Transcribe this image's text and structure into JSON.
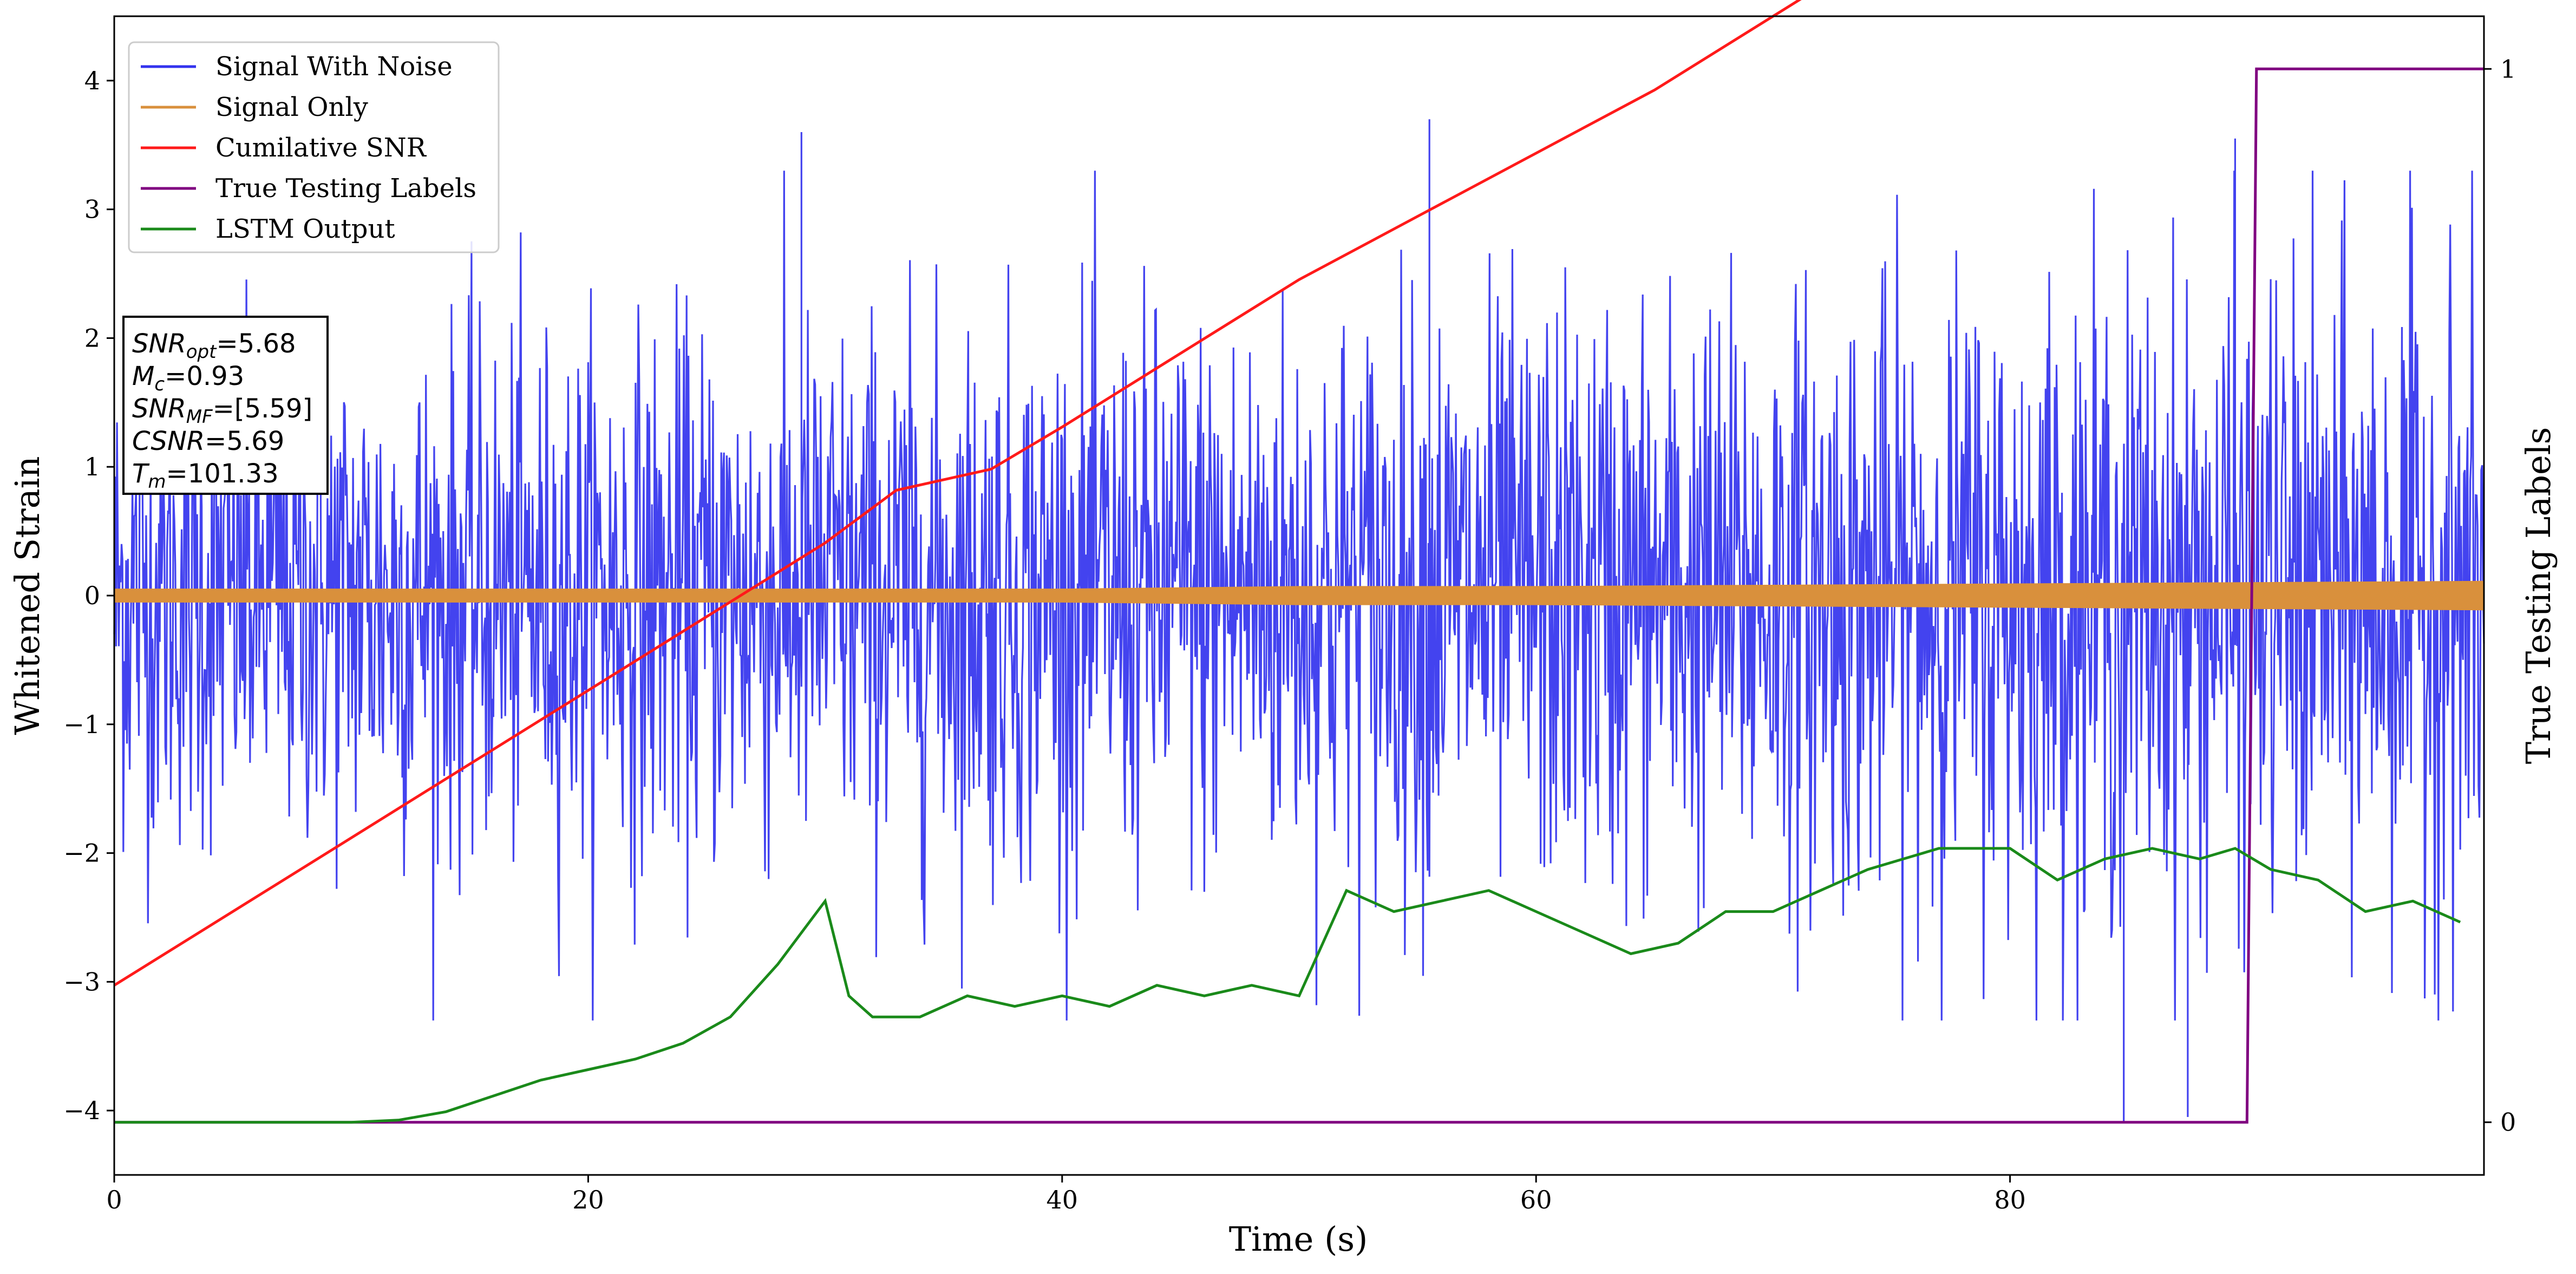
{
  "chart_data": {
    "type": "line",
    "xlabel": "Time (s)",
    "ylabel": "Whitened Strain",
    "y2label": "True Testing Labels",
    "xlim": [
      0,
      100
    ],
    "ylim": [
      -4.5,
      4.5
    ],
    "y2lim": [
      -0.05,
      1.05
    ],
    "xticks": [
      "0",
      "20",
      "40",
      "60",
      "80"
    ],
    "xtick_values": [
      0,
      20,
      40,
      60,
      80
    ],
    "yticks": [
      "−4",
      "−3",
      "−2",
      "−1",
      "0",
      "1",
      "2",
      "3",
      "4"
    ],
    "ytick_values": [
      -4,
      -3,
      -2,
      -1,
      0,
      1,
      2,
      3,
      4
    ],
    "y2ticks": [
      "0",
      "1"
    ],
    "y2tick_values": [
      0,
      1
    ],
    "legend_position": "top-left",
    "colors": {
      "noise": "#3333ee",
      "signal": "#d9903c",
      "csnr": "#ff1a1a",
      "labels": "#800080",
      "lstm": "#1a8a1a"
    },
    "series": [
      {
        "name": "Signal With Noise",
        "color": "#3333ee",
        "description_values": "dense white-noise band",
        "envelope": [
          {
            "x": 0,
            "lower": -2.3,
            "upper": 2.3
          },
          {
            "x": 100,
            "lower": -2.6,
            "upper": 3.0
          }
        ],
        "notable_spikes": [
          {
            "x": 29.0,
            "y": 3.6
          },
          {
            "x": 55.5,
            "y": 3.7
          },
          {
            "x": 84.8,
            "y": -4.1
          },
          {
            "x": 87.5,
            "y": -4.05
          },
          {
            "x": 89.5,
            "y": 3.55
          }
        ]
      },
      {
        "name": "Signal Only",
        "color": "#d9903c",
        "x": [
          0,
          20,
          40,
          50,
          60,
          70,
          80,
          90,
          100
        ],
        "upper": [
          0.05,
          0.05,
          0.05,
          0.07,
          0.07,
          0.08,
          0.09,
          0.1,
          0.11
        ],
        "lower": [
          -0.05,
          -0.05,
          -0.05,
          -0.07,
          -0.07,
          -0.08,
          -0.09,
          -0.1,
          -0.11
        ]
      },
      {
        "name": "Cumilative SNR",
        "color": "#ff1a1a",
        "x": [
          0,
          5,
          10,
          15,
          20,
          25,
          30,
          33,
          37,
          40,
          45,
          50,
          55,
          60,
          65,
          70,
          75,
          80,
          85,
          90,
          95,
          100
        ],
        "y": [
          0.13,
          0.2,
          0.27,
          0.34,
          0.41,
          0.48,
          0.55,
          0.6,
          0.62,
          0.66,
          0.73,
          0.8,
          0.86,
          0.92,
          0.98,
          1.05,
          1.12,
          1.19,
          1.27,
          1.37,
          1.5,
          1.64
        ]
      },
      {
        "name": "True Testing Labels",
        "color": "#800080",
        "x": [
          0,
          90.0,
          90.4,
          100
        ],
        "y": [
          0,
          0,
          1,
          1
        ]
      },
      {
        "name": "LSTM Output",
        "color": "#1a8a1a",
        "x": [
          0,
          10,
          12,
          14,
          16,
          18,
          20,
          22,
          24,
          26,
          28,
          30,
          31,
          32,
          34,
          36,
          38,
          40,
          42,
          44,
          46,
          48,
          50,
          51,
          52,
          54,
          56,
          58,
          60,
          62,
          64,
          66,
          68,
          70,
          72,
          74,
          75.5,
          77,
          80,
          82,
          84,
          86,
          88,
          89.5,
          91,
          93,
          95,
          97,
          99
        ],
        "y": [
          0,
          0,
          0.002,
          0.01,
          0.025,
          0.04,
          0.05,
          0.06,
          0.075,
          0.1,
          0.15,
          0.21,
          0.12,
          0.1,
          0.1,
          0.12,
          0.11,
          0.12,
          0.11,
          0.13,
          0.12,
          0.13,
          0.12,
          0.17,
          0.22,
          0.2,
          0.21,
          0.22,
          0.2,
          0.18,
          0.16,
          0.17,
          0.2,
          0.2,
          0.22,
          0.24,
          0.25,
          0.26,
          0.26,
          0.23,
          0.25,
          0.26,
          0.25,
          0.26,
          0.24,
          0.23,
          0.2,
          0.21,
          0.19
        ]
      }
    ],
    "legend": [
      "Signal With Noise",
      "Signal Only",
      "Cumilative SNR",
      "True Testing Labels",
      "LSTM Output"
    ]
  },
  "infobox": {
    "lines": [
      {
        "main": "SNR",
        "sub": "opt",
        "value": "=5.68"
      },
      {
        "main": "M",
        "sub": "c",
        "value": "=0.93"
      },
      {
        "main": "SNR",
        "sub": "MF",
        "value": "=[5.59]"
      },
      {
        "main": "CSNR",
        "sub": "",
        "value": "=5.69"
      },
      {
        "main": "T",
        "sub": "m",
        "value": "=101.33"
      }
    ]
  }
}
